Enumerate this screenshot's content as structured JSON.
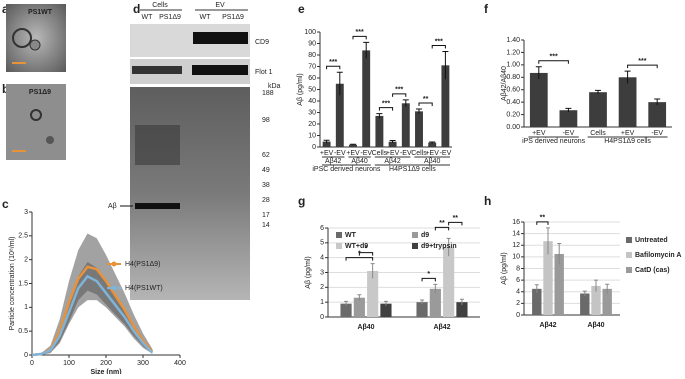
{
  "figure": {
    "panel_a": {
      "label": "a",
      "title": "PS1WT"
    },
    "panel_b": {
      "label": "b",
      "title": "PS1Δ9"
    },
    "panel_d": {
      "label": "d",
      "groups": [
        "Cells",
        "EV"
      ],
      "lanes": [
        "WT",
        "PS1Δ9",
        "WT",
        "PS1Δ9"
      ],
      "rows": [
        "CD9",
        "Flot 1",
        "Aβ"
      ],
      "kda_title": "kDa",
      "kda": [
        "188",
        "98",
        "62",
        "49",
        "38",
        "28",
        "17",
        "14"
      ]
    }
  },
  "chart_data": [
    {
      "type": "line",
      "panel": "c",
      "xlabel": "Size (nm)",
      "ylabel": "Particle concentration (10⁸/ml)",
      "x": [
        0,
        25,
        50,
        75,
        100,
        125,
        150,
        175,
        200,
        225,
        250,
        275,
        300,
        325
      ],
      "series": [
        {
          "name": "H4(PS1Δ9)",
          "color": "#e8923a",
          "values": [
            0,
            0.02,
            0.12,
            0.5,
            1.1,
            1.6,
            1.85,
            1.8,
            1.55,
            1.25,
            0.95,
            0.6,
            0.3,
            0.08
          ],
          "errors": [
            0,
            0.02,
            0.08,
            0.25,
            0.45,
            0.6,
            0.7,
            0.65,
            0.55,
            0.45,
            0.35,
            0.25,
            0.15,
            0.05
          ]
        },
        {
          "name": "H4(PS1WT)",
          "color": "#7fb3d8",
          "values": [
            0,
            0.02,
            0.1,
            0.4,
            0.9,
            1.4,
            1.65,
            1.55,
            1.3,
            1.05,
            0.8,
            0.5,
            0.25,
            0.05
          ],
          "errors": [
            0,
            0.01,
            0.04,
            0.12,
            0.2,
            0.25,
            0.3,
            0.28,
            0.24,
            0.2,
            0.15,
            0.1,
            0.06,
            0.02
          ]
        }
      ],
      "xlim": [
        0,
        400
      ],
      "xticks": [
        0,
        100,
        200,
        300,
        400
      ],
      "ylim": [
        0,
        3
      ],
      "yticks": [
        0,
        0.5,
        1,
        1.5,
        2,
        2.5,
        3
      ],
      "legend": "right",
      "grid": false
    },
    {
      "type": "bar",
      "panel": "e",
      "ylabel": "Aβ (pg/ml)",
      "color": "#3d3d3d",
      "categories": [
        "+EV",
        "-EV",
        "+EV",
        "-EV",
        "Cells",
        "+EV",
        "-EV",
        "Cells",
        "+EV",
        "-EV"
      ],
      "values": [
        4.7,
        55,
        2,
        84,
        27,
        4.6,
        38,
        31,
        3.8,
        71
      ],
      "errors": [
        1.2,
        10,
        0.4,
        7,
        2,
        1,
        3,
        2,
        0.6,
        12
      ],
      "groups": [
        {
          "label": "Aβ42",
          "categories": [
            0,
            1
          ]
        },
        {
          "label": "Aβ40",
          "categories": [
            2,
            3
          ]
        },
        {
          "label": "Aβ42",
          "categories": [
            4,
            6
          ]
        },
        {
          "label": "Aβ40",
          "categories": [
            7,
            9
          ]
        }
      ],
      "sources": [
        {
          "label": "iPSC derived neurons",
          "categories": [
            0,
            3
          ]
        },
        {
          "label": "H4PS1Δ9 cells",
          "categories": [
            4,
            9
          ]
        }
      ],
      "annotations": [
        {
          "text": "***",
          "pair": [
            0,
            1
          ]
        },
        {
          "text": "***",
          "pair": [
            2,
            3
          ]
        },
        {
          "text": "***",
          "pair": [
            4,
            5
          ]
        },
        {
          "text": "***",
          "pair": [
            5,
            6
          ]
        },
        {
          "text": "**",
          "pair": [
            7,
            8
          ]
        },
        {
          "text": "***",
          "pair": [
            8,
            9
          ]
        }
      ],
      "ylim": [
        0,
        100
      ],
      "yticks": [
        0,
        10,
        20,
        30,
        40,
        50,
        60,
        70,
        80,
        90,
        100
      ],
      "grid": false
    },
    {
      "type": "bar",
      "panel": "f",
      "ylabel": "Aβ42/Aβ40",
      "color": "#3d3d3d",
      "categories": [
        "+EV",
        "-EV",
        "Cells",
        "+EV",
        "-EV"
      ],
      "values": [
        0.87,
        0.27,
        0.56,
        0.8,
        0.4
      ],
      "errors": [
        0.1,
        0.03,
        0.03,
        0.1,
        0.05
      ],
      "sources": [
        {
          "label": "iPS derived neurons",
          "categories": [
            0,
            1
          ]
        },
        {
          "label": "H4PS1Δ9 cells",
          "categories": [
            2,
            4
          ]
        }
      ],
      "annotations": [
        {
          "text": "***",
          "pair": [
            0,
            1
          ]
        },
        {
          "text": "***",
          "pair": [
            3,
            4
          ]
        }
      ],
      "ylim": [
        0,
        1.4
      ],
      "yticks": [
        {
          "value": 0,
          "label": "0.00"
        },
        {
          "value": 0.2,
          "label": "0.20"
        },
        {
          "value": 0.4,
          "label": "0.40"
        },
        {
          "value": 0.6,
          "label": "0.60"
        },
        {
          "value": 0.8,
          "label": "0.80"
        },
        {
          "value": 1,
          "label": "1.00"
        },
        {
          "value": 1.2,
          "label": "1.20"
        },
        {
          "value": 1.4,
          "label": "1.40"
        }
      ],
      "grid": false
    },
    {
      "type": "bar",
      "panel": "g",
      "ylabel": "Aβ (pg/ml)",
      "categories": [
        "Aβ40",
        "Aβ42"
      ],
      "series": [
        {
          "name": "WT",
          "color": "#6a6a6a",
          "values": [
            0.9,
            1.0
          ],
          "errors": [
            0.15,
            0.15
          ]
        },
        {
          "name": "d9",
          "color": "#9a9a9a",
          "values": [
            1.3,
            1.9
          ],
          "errors": [
            0.2,
            0.3
          ]
        },
        {
          "name": "WT+d9",
          "color": "#c8c8c8",
          "values": [
            3.1,
            4.7
          ],
          "errors": [
            0.5,
            0.6
          ]
        },
        {
          "name": "d9+trypsin",
          "color": "#404040",
          "values": [
            0.9,
            1.0
          ],
          "errors": [
            0.15,
            0.2
          ]
        }
      ],
      "annotations": [
        {
          "text": "*",
          "category": 0,
          "pair": [
            0,
            2
          ]
        },
        {
          "text": "*",
          "category": 0,
          "pair": [
            1,
            2
          ]
        },
        {
          "text": "*",
          "category": 1,
          "pair": [
            0,
            1
          ]
        },
        {
          "text": "**",
          "category": 1,
          "pair": [
            1,
            2
          ]
        },
        {
          "text": "**",
          "category": 1,
          "pair": [
            2,
            3
          ]
        }
      ],
      "ylim": [
        0,
        6
      ],
      "yticks": [
        0,
        1,
        2,
        3,
        4,
        5,
        6
      ],
      "grid": true,
      "legend": "top"
    },
    {
      "type": "bar",
      "panel": "h",
      "ylabel": "Aβ (pg/ml)",
      "categories": [
        "Aβ42",
        "Aβ40"
      ],
      "series": [
        {
          "name": "Untreated",
          "color": "#6a6a6a",
          "values": [
            4.5,
            3.7
          ],
          "errors": [
            0.7,
            0.4
          ]
        },
        {
          "name": "Bafilomycin A",
          "color": "#c4c4c4",
          "values": [
            12.7,
            5.0
          ],
          "errors": [
            2.3,
            1.0
          ]
        },
        {
          "name": "CatD (cas)",
          "color": "#9a9a9a",
          "values": [
            10.5,
            4.5
          ],
          "errors": [
            1.8,
            0.8
          ]
        }
      ],
      "annotations": [
        {
          "text": "**",
          "category": 0,
          "pair": [
            0,
            1
          ]
        }
      ],
      "ylim": [
        0,
        16
      ],
      "yticks": [
        0,
        2,
        4,
        6,
        8,
        10,
        12,
        14,
        16
      ],
      "grid": true,
      "legend": "right"
    }
  ]
}
